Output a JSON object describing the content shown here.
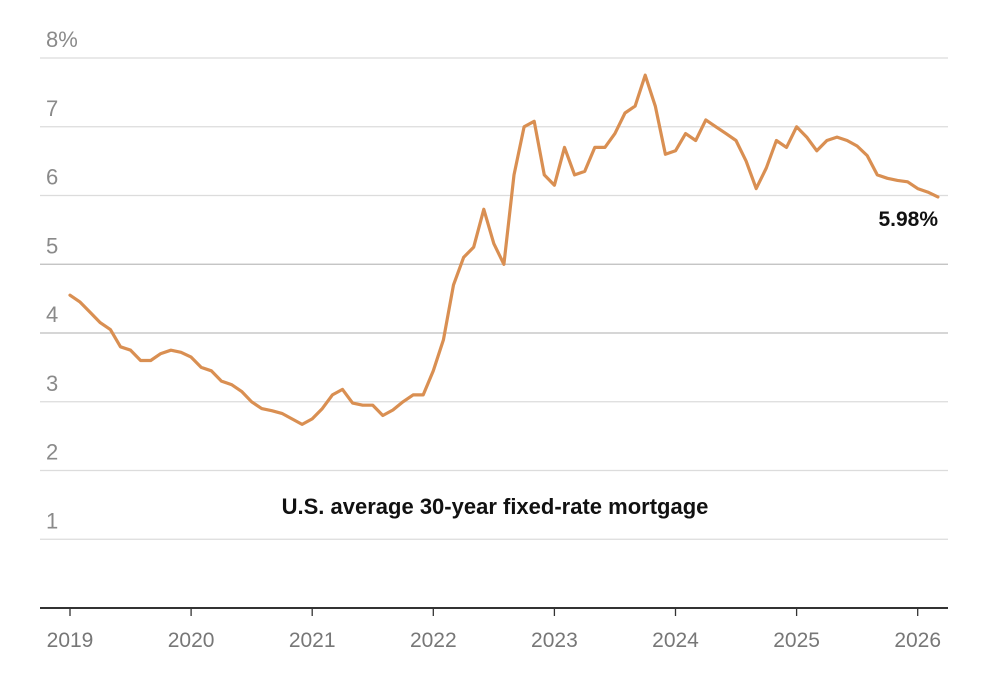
{
  "chart_data": {
    "type": "line",
    "title": "U.S. average 30-year fixed-rate mortgage",
    "xlabel": "",
    "ylabel": "",
    "ylim": [
      0,
      8
    ],
    "xlim": [
      "2019-01",
      "2026-03"
    ],
    "y_ticks": [
      "1",
      "2",
      "3",
      "4",
      "5",
      "6",
      "7",
      "8%"
    ],
    "y_tick_values": [
      1,
      2,
      3,
      4,
      5,
      6,
      7,
      8
    ],
    "x_ticks": [
      "2019",
      "2020",
      "2021",
      "2022",
      "2023",
      "2024",
      "2025",
      "2026"
    ],
    "grid": true,
    "line_color": "#d98f52",
    "end_label": "5.98%",
    "series": [
      {
        "x": [
          "2019-01",
          "2019-02",
          "2019-03",
          "2019-04",
          "2019-05",
          "2019-06",
          "2019-07",
          "2019-08",
          "2019-09",
          "2019-10",
          "2019-11",
          "2019-12",
          "2020-01",
          "2020-02",
          "2020-03",
          "2020-04",
          "2020-05",
          "2020-06",
          "2020-07",
          "2020-08",
          "2020-09",
          "2020-10",
          "2020-11",
          "2020-12",
          "2021-01",
          "2021-02",
          "2021-03",
          "2021-04",
          "2021-05",
          "2021-06",
          "2021-07",
          "2021-08",
          "2021-09",
          "2021-10",
          "2021-11",
          "2021-12",
          "2022-01",
          "2022-02",
          "2022-03",
          "2022-04",
          "2022-05",
          "2022-06",
          "2022-07",
          "2022-08",
          "2022-09",
          "2022-10",
          "2022-11",
          "2022-12",
          "2023-01",
          "2023-02",
          "2023-03",
          "2023-04",
          "2023-05",
          "2023-06",
          "2023-07",
          "2023-08",
          "2023-09",
          "2023-10",
          "2023-11",
          "2023-12",
          "2024-01",
          "2024-02",
          "2024-03",
          "2024-04",
          "2024-05",
          "2024-06",
          "2024-07",
          "2024-08",
          "2024-09",
          "2024-10",
          "2024-11",
          "2024-12",
          "2025-01",
          "2025-02",
          "2025-03",
          "2025-04",
          "2025-05",
          "2025-06",
          "2025-07",
          "2025-08",
          "2025-09",
          "2025-10",
          "2025-11",
          "2025-12",
          "2026-01",
          "2026-02",
          "2026-03"
        ],
        "y": [
          4.55,
          4.45,
          4.3,
          4.15,
          4.05,
          3.8,
          3.75,
          3.6,
          3.6,
          3.7,
          3.75,
          3.72,
          3.65,
          3.5,
          3.45,
          3.3,
          3.25,
          3.15,
          3.0,
          2.9,
          2.87,
          2.83,
          2.75,
          2.67,
          2.75,
          2.9,
          3.1,
          3.18,
          2.98,
          2.95,
          2.95,
          2.8,
          2.88,
          3.0,
          3.1,
          3.1,
          3.45,
          3.9,
          4.7,
          5.1,
          5.25,
          5.8,
          5.3,
          5.0,
          6.3,
          7.0,
          7.08,
          6.3,
          6.15,
          6.7,
          6.3,
          6.35,
          6.7,
          6.7,
          6.9,
          7.2,
          7.3,
          7.75,
          7.3,
          6.6,
          6.65,
          6.9,
          6.8,
          7.1,
          7.0,
          6.9,
          6.8,
          6.5,
          6.1,
          6.4,
          6.8,
          6.7,
          7.0,
          6.85,
          6.65,
          6.8,
          6.85,
          6.8,
          6.72,
          6.58,
          6.3,
          6.25,
          6.22,
          6.2,
          6.1,
          6.05,
          5.98
        ]
      }
    ]
  }
}
